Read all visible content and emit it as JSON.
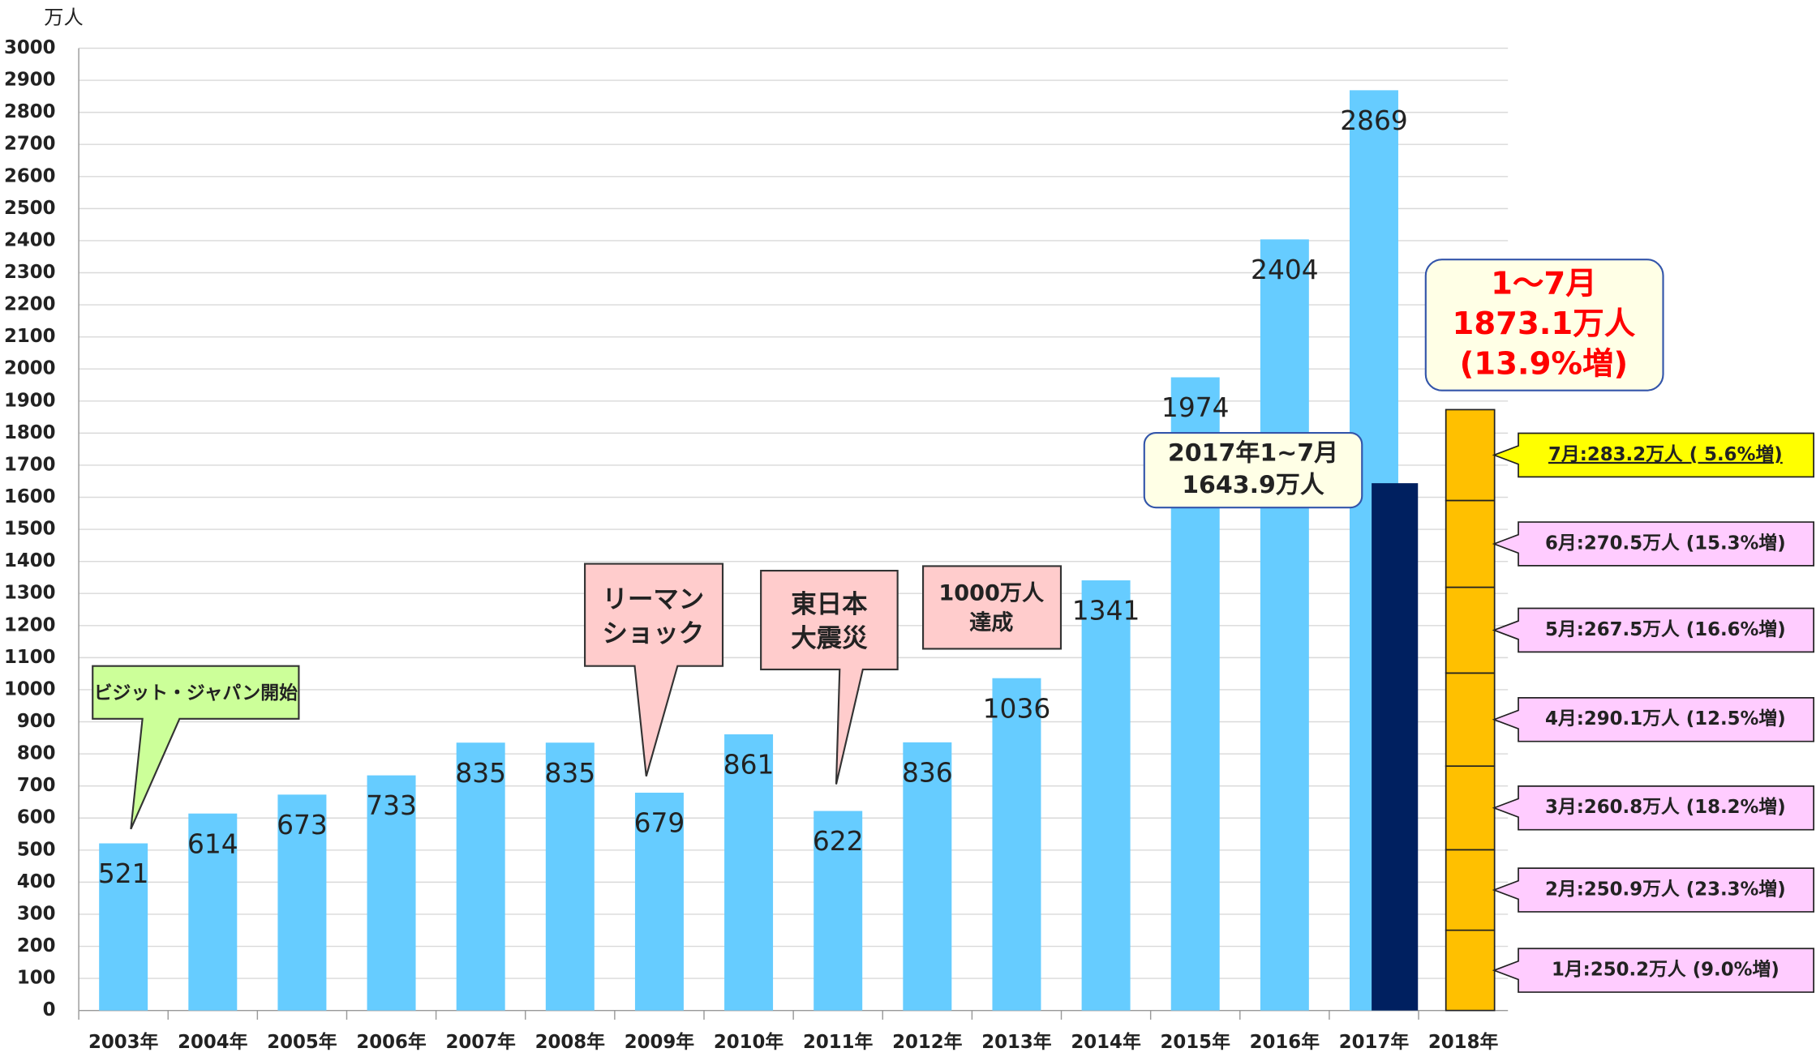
{
  "chart_data": {
    "type": "bar",
    "y_unit": "万人",
    "categories": [
      "2003年",
      "2004年",
      "2005年",
      "2006年",
      "2007年",
      "2008年",
      "2009年",
      "2010年",
      "2011年",
      "2012年",
      "2013年",
      "2014年",
      "2015年",
      "2016年",
      "2017年",
      "2018年"
    ],
    "values": [
      521,
      614,
      673,
      733,
      835,
      835,
      679,
      861,
      622,
      836,
      1036,
      1341,
      1974,
      2404,
      2869,
      null
    ],
    "color": "#66ccff",
    "ylim": [
      0,
      3000
    ],
    "yticks": [
      0,
      100,
      200,
      300,
      400,
      500,
      600,
      700,
      800,
      900,
      1000,
      1100,
      1200,
      1300,
      1400,
      1500,
      1600,
      1700,
      1800,
      1900,
      2000,
      2100,
      2200,
      2300,
      2400,
      2500,
      2600,
      2700,
      2800,
      2900,
      3000
    ],
    "grid": true,
    "partial_2017": {
      "value": 1643.9,
      "color": "#002060",
      "label_lines": [
        "2017年1~7月",
        "1643.9万人"
      ]
    },
    "monthly_2018": {
      "color": "#ffc000",
      "values": [
        250.2,
        250.9,
        260.8,
        290.1,
        267.5,
        270.5,
        283.2
      ],
      "value_labels": [
        "1月:250.2万人 (9.0%増)",
        "2月:250.9万人 (23.3%増)",
        "3月:260.8万人 (18.2%増)",
        "4月:290.1万人 (12.5%増)",
        "5月:267.5万人 (16.6%増)",
        "6月:270.5万人 (15.3%増)",
        "7月:283.2万人 ( 5.6%増)"
      ],
      "total_lines": [
        "1～7月",
        "1873.1万人",
        "(13.9%増)"
      ]
    },
    "annotations": [
      {
        "lines": [
          "ビジット・ジャパン開始"
        ]
      },
      {
        "lines": [
          "リーマン",
          "ショック"
        ]
      },
      {
        "lines": [
          "東日本",
          "大震災"
        ]
      },
      {
        "lines": [
          "1000万人",
          "達成"
        ]
      }
    ]
  }
}
